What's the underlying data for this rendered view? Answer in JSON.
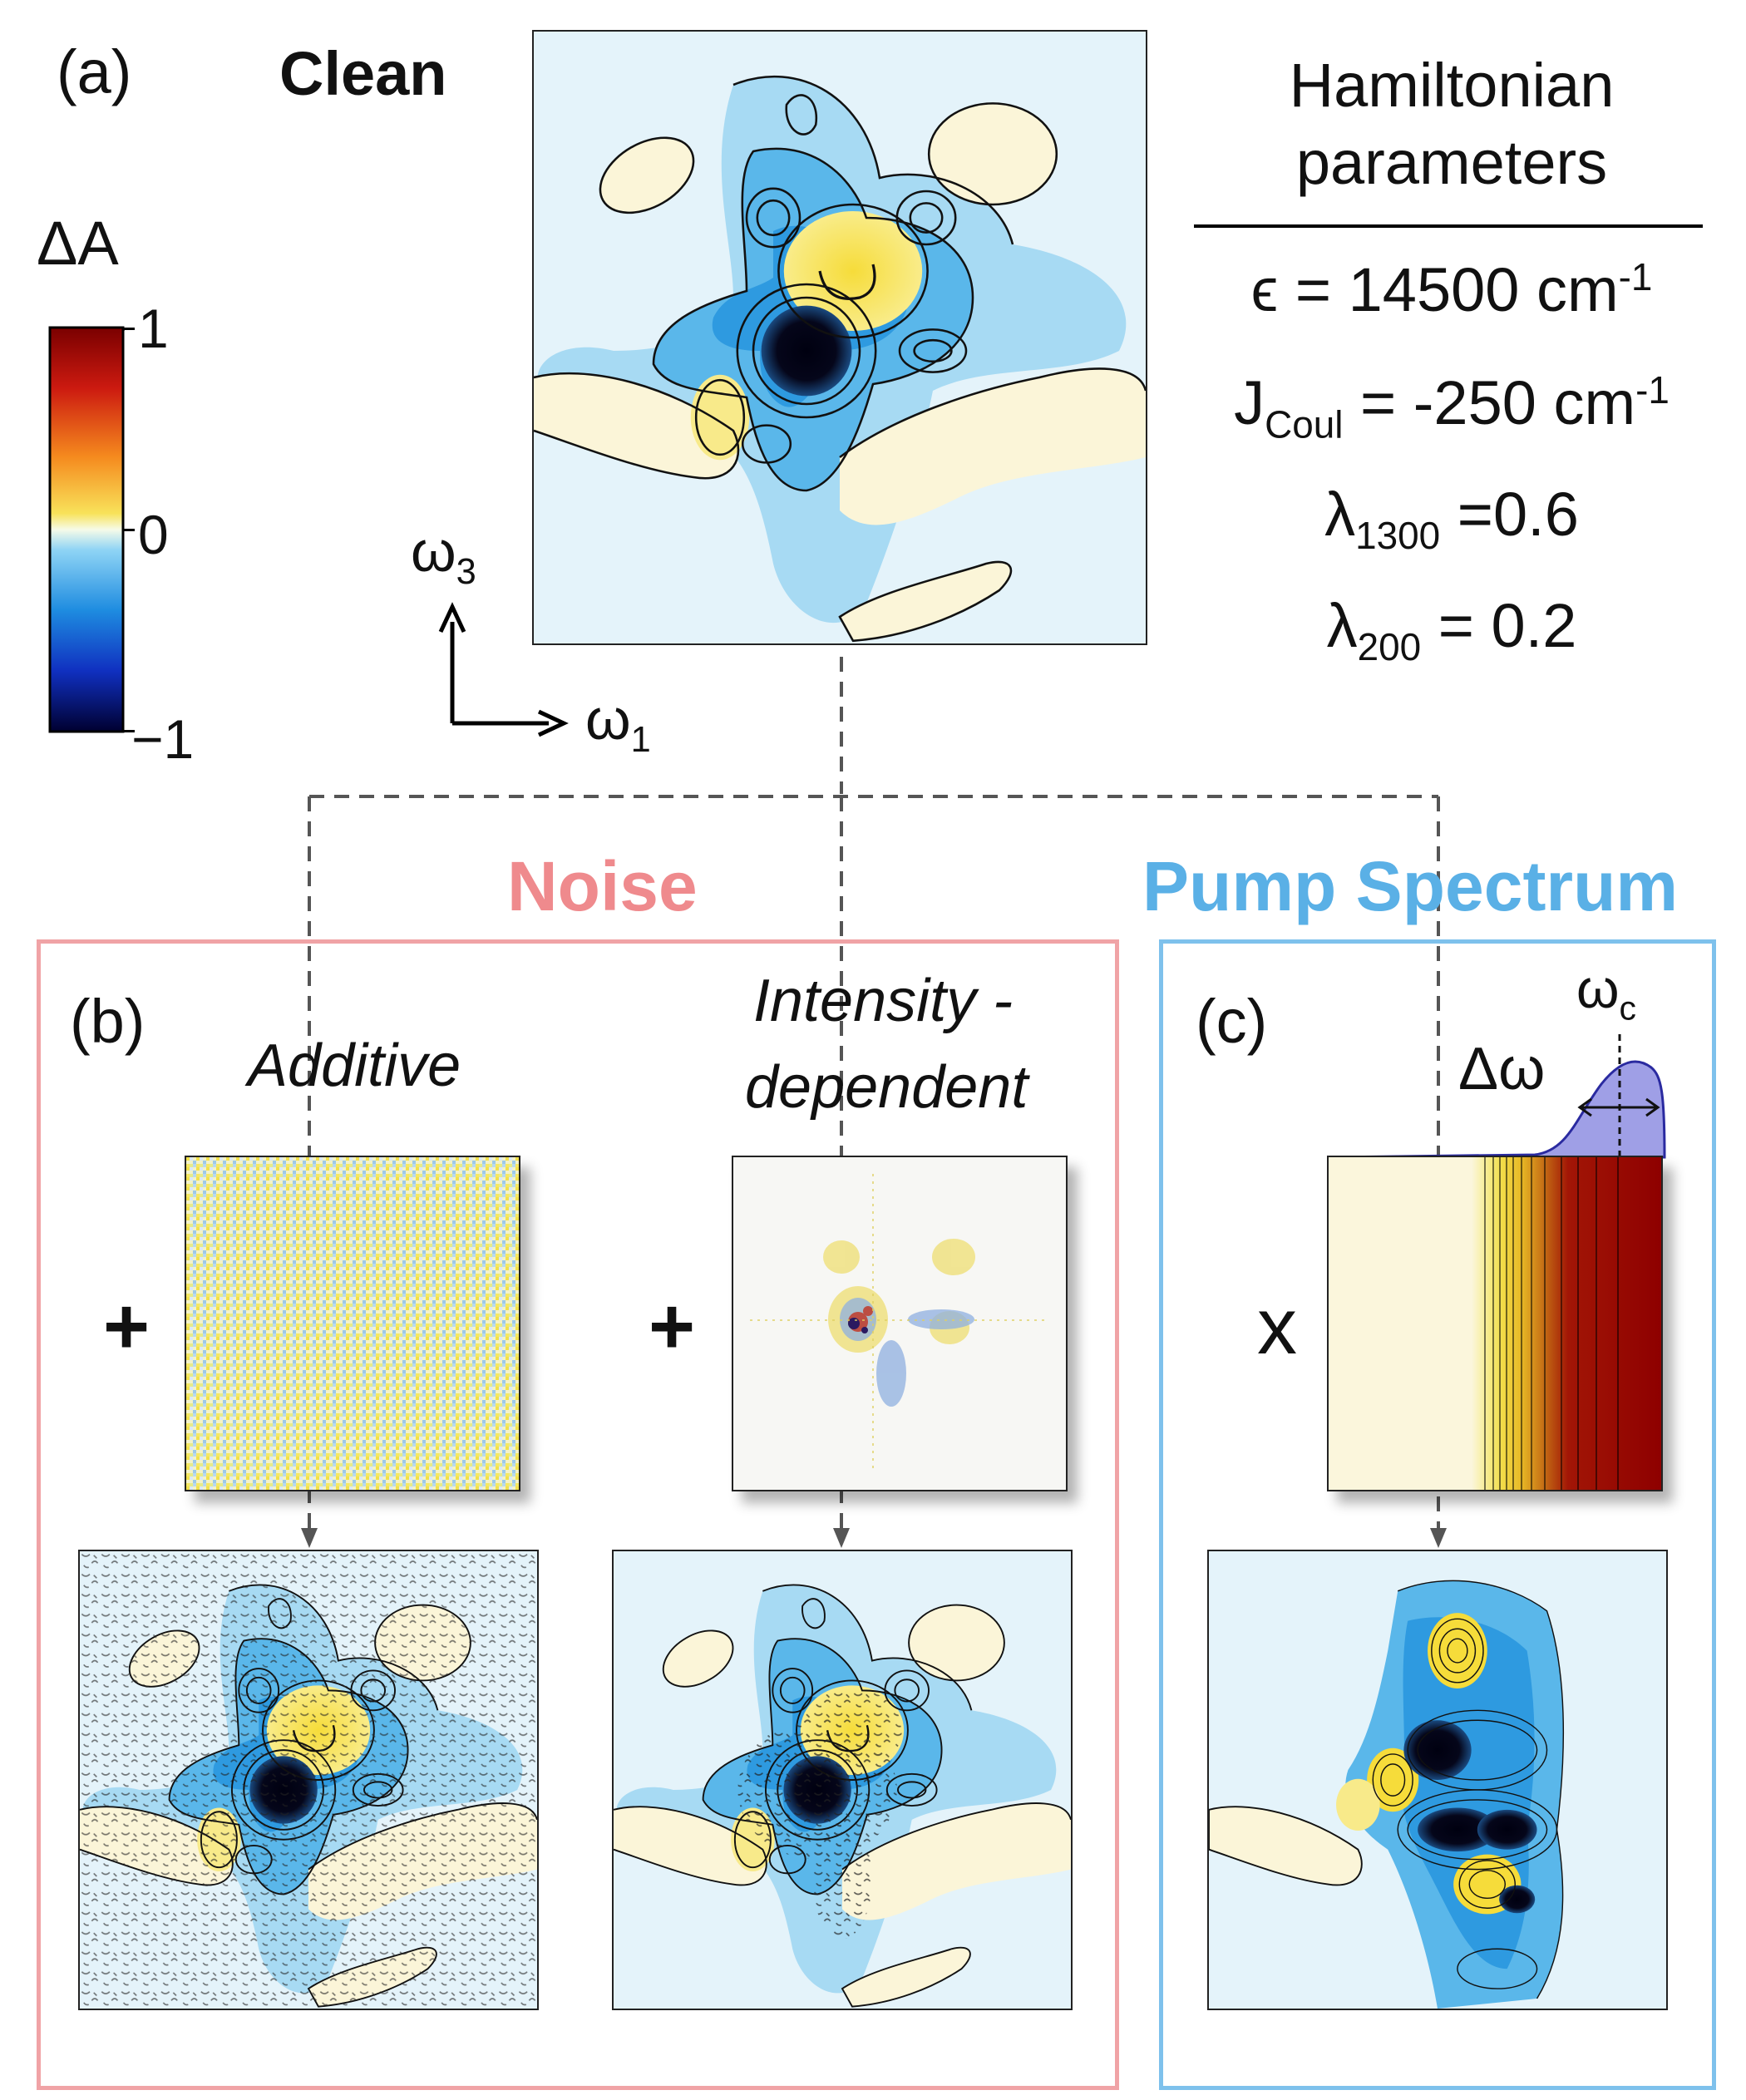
{
  "labels": {
    "panel_a": "(a)",
    "panel_b": "(b)",
    "panel_c": "(c)",
    "clean": "Clean",
    "noise": "Noise",
    "pump_spectrum": "Pump Spectrum",
    "additive": "Additive",
    "intensity_line1": "Intensity -",
    "intensity_line2": "dependent",
    "plus": "+",
    "times": "x",
    "delta_omega": "Δω",
    "omega_c": "ω",
    "omega_c_sub": "c"
  },
  "colorbar": {
    "title": "ΔA",
    "tick_top": "1",
    "tick_mid": "0",
    "tick_bottom": "−1"
  },
  "axes": {
    "y_symbol": "ω",
    "y_sub": "3",
    "x_symbol": "ω",
    "x_sub": "1"
  },
  "hamiltonian": {
    "title_line1": "Hamiltonian",
    "title_line2": "parameters",
    "eps_text": "ϵ = 14500 cm",
    "eps_sup": "-1",
    "j_sym": "J",
    "j_sub": "Coul",
    "j_text": " = -250 cm",
    "j_sup": "-1",
    "l1_sym": "λ",
    "l1_sub": "1300",
    "l1_text": " =0.6",
    "l2_sym": "λ",
    "l2_sub": "200",
    "l2_text": " = 0.2"
  },
  "colors": {
    "noise_accent": "#ef8a8d",
    "pump_accent": "#5ab0e6",
    "noise_border": "#f0a3a6",
    "pump_border": "#7ec1ec",
    "neg_strong": "#000033",
    "neg_mid": "#3aa0e0",
    "neg_light": "#bfe3f5",
    "background_light": "#e4f3fa",
    "pos_light": "#fbf5d8",
    "pos_mid": "#f6e36a",
    "pos_strong": "#b00000",
    "pump_fill": "#9f9fe6"
  }
}
